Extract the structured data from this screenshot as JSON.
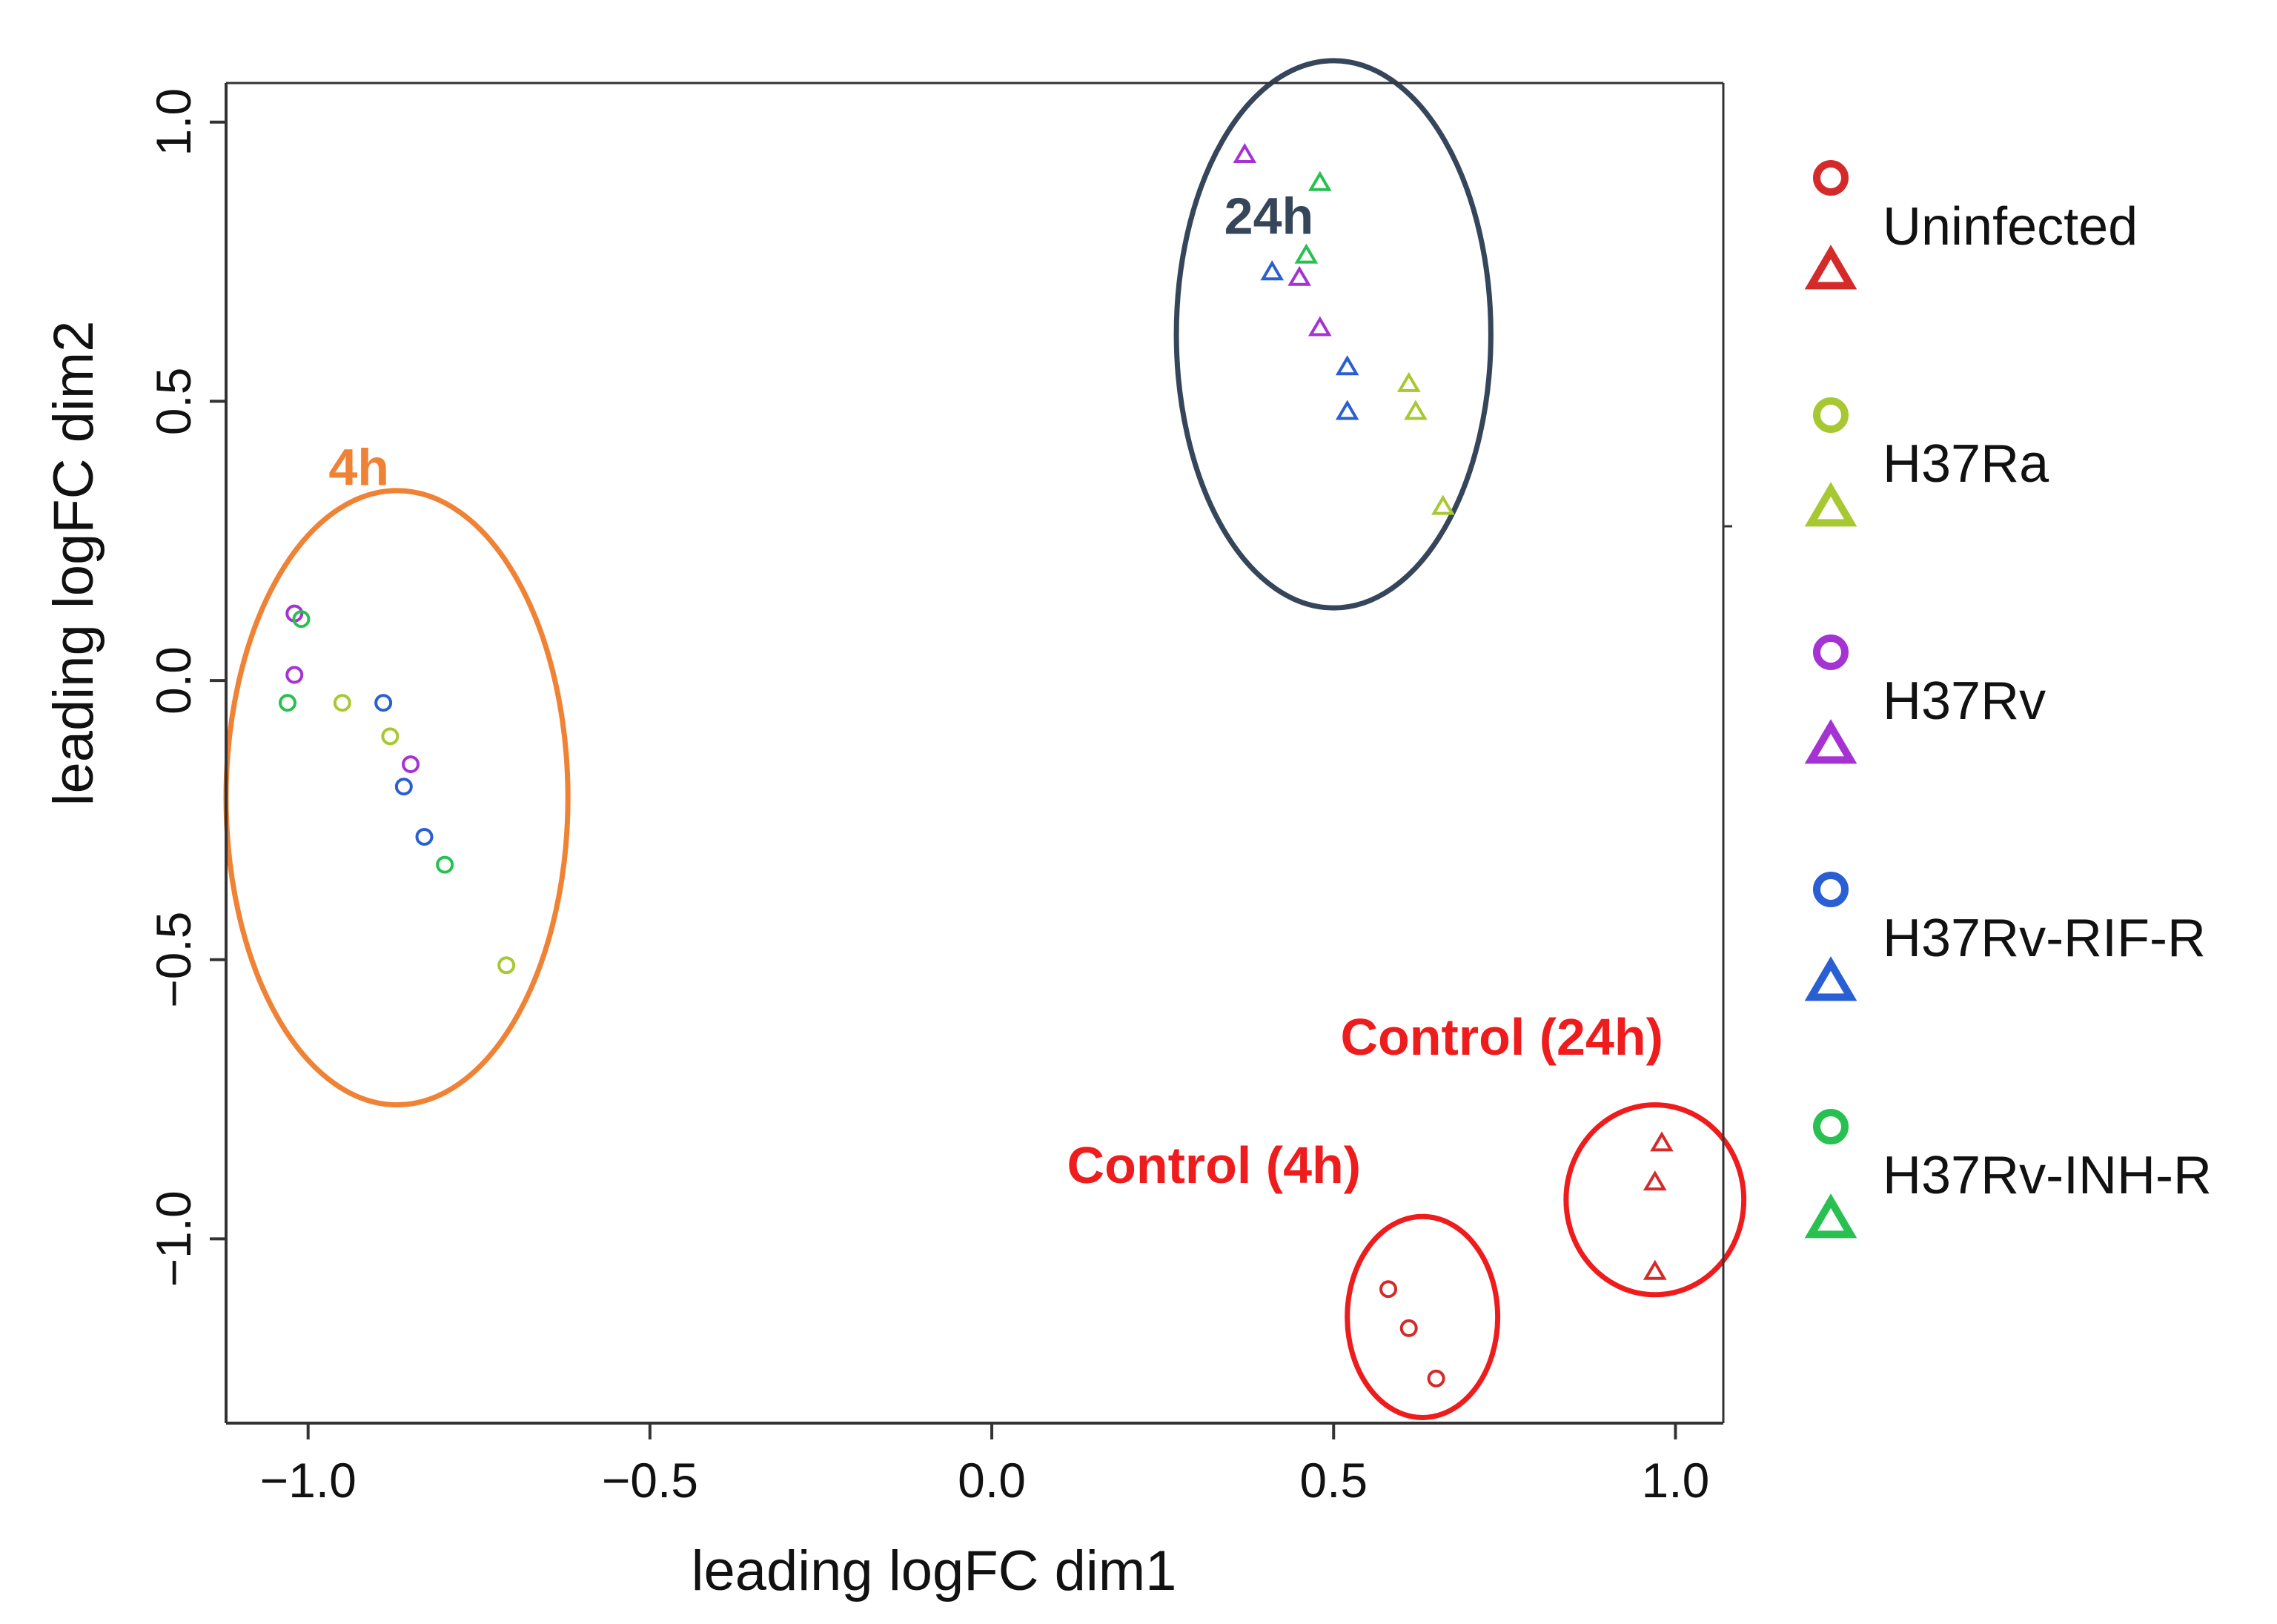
{
  "chart_data": {
    "type": "scatter",
    "xlabel": "leading logFC dim1",
    "ylabel": "leading logFC dim2",
    "xlim": [
      -1.12,
      1.07
    ],
    "ylim": [
      -1.33,
      1.07
    ],
    "xticks": [
      -1.0,
      -0.5,
      0.0,
      0.5,
      1.0
    ],
    "xtick_labels": [
      "−1.0",
      "−0.5",
      "0.0",
      "0.5",
      "1.0"
    ],
    "yticks": [
      -1.0,
      -0.5,
      0.0,
      0.5,
      1.0
    ],
    "ytick_labels": [
      "−1.0",
      "−0.5",
      "0.0",
      "0.5",
      "1.0"
    ],
    "grid": false,
    "legend_position": "right",
    "colors": {
      "Uninfected": "#d42a2a",
      "H37Ra": "#a8c832",
      "H37Rv": "#a532d2",
      "H37Rv-RIF-R": "#2a5fd4",
      "H37Rv-INH-R": "#28c050",
      "ellipse_4h": "#ef8234",
      "ellipse_24h": "#36465a",
      "ellipse_control": "#ee1c1c"
    },
    "legend": [
      {
        "name": "Uninfected",
        "color": "#d42a2a"
      },
      {
        "name": "H37Ra",
        "color": "#a8c832"
      },
      {
        "name": "H37Rv",
        "color": "#a532d2"
      },
      {
        "name": "H37Rv-RIF-R",
        "color": "#2a5fd4"
      },
      {
        "name": "H37Rv-INH-R",
        "color": "#28c050"
      }
    ],
    "marker_legend": [
      "circle",
      "triangle"
    ],
    "series": [
      {
        "name": "Uninfected",
        "marker": "circle",
        "x": [
          0.58,
          0.61,
          0.65
        ],
        "y": [
          -1.09,
          -1.16,
          -1.25
        ]
      },
      {
        "name": "Uninfected",
        "marker": "triangle",
        "x": [
          0.98,
          0.97,
          0.97
        ],
        "y": [
          -0.83,
          -0.9,
          -1.06
        ]
      },
      {
        "name": "H37Ra",
        "marker": "circle",
        "x": [
          -0.95,
          -0.88,
          -0.71
        ],
        "y": [
          -0.04,
          -0.1,
          -0.51
        ]
      },
      {
        "name": "H37Ra",
        "marker": "triangle",
        "x": [
          0.61,
          0.62,
          0.66
        ],
        "y": [
          0.53,
          0.48,
          0.31
        ]
      },
      {
        "name": "H37Rv",
        "marker": "circle",
        "x": [
          -1.02,
          -1.02,
          -0.85
        ],
        "y": [
          0.12,
          0.01,
          -0.15
        ]
      },
      {
        "name": "H37Rv",
        "marker": "triangle",
        "x": [
          0.37,
          0.45,
          0.48
        ],
        "y": [
          0.94,
          0.72,
          0.63
        ]
      },
      {
        "name": "H37Rv-RIF-R",
        "marker": "circle",
        "x": [
          -0.89,
          -0.86,
          -0.83
        ],
        "y": [
          -0.04,
          -0.19,
          -0.28
        ]
      },
      {
        "name": "H37Rv-RIF-R",
        "marker": "triangle",
        "x": [
          0.41,
          0.52,
          0.52
        ],
        "y": [
          0.73,
          0.56,
          0.48
        ]
      },
      {
        "name": "H37Rv-INH-R",
        "marker": "circle",
        "x": [
          -1.01,
          -1.03,
          -0.8
        ],
        "y": [
          0.11,
          -0.04,
          -0.33
        ]
      },
      {
        "name": "H37Rv-INH-R",
        "marker": "triangle",
        "x": [
          0.48,
          0.46
        ],
        "y": [
          0.89,
          0.76
        ]
      }
    ],
    "annotations": [
      {
        "text": "4h",
        "color": "#ef8234",
        "x": -0.97,
        "y": 0.35
      },
      {
        "text": "24h",
        "color": "#36465a",
        "x": 0.34,
        "y": 0.8
      },
      {
        "text": "Control (24h)",
        "color": "#ee1c1c",
        "x": 0.51,
        "y": -0.67
      },
      {
        "text": "Control (4h)",
        "color": "#ee1c1c",
        "x": 0.11,
        "y": -0.9
      }
    ],
    "ellipses": [
      {
        "label": "4h",
        "cx": -0.87,
        "cy": -0.21,
        "rx": 0.25,
        "ry": 0.55,
        "color": "#ef8234"
      },
      {
        "label": "24h",
        "cx": 0.5,
        "cy": 0.62,
        "rx": 0.23,
        "ry": 0.49,
        "color": "#36465a"
      },
      {
        "label": "Control (4h)",
        "cx": 0.63,
        "cy": -1.14,
        "rx": 0.11,
        "ry": 0.18,
        "color": "#ee1c1c"
      },
      {
        "label": "Control (24h)",
        "cx": 0.97,
        "cy": -0.93,
        "rx": 0.13,
        "ry": 0.17,
        "color": "#ee1c1c"
      }
    ]
  }
}
